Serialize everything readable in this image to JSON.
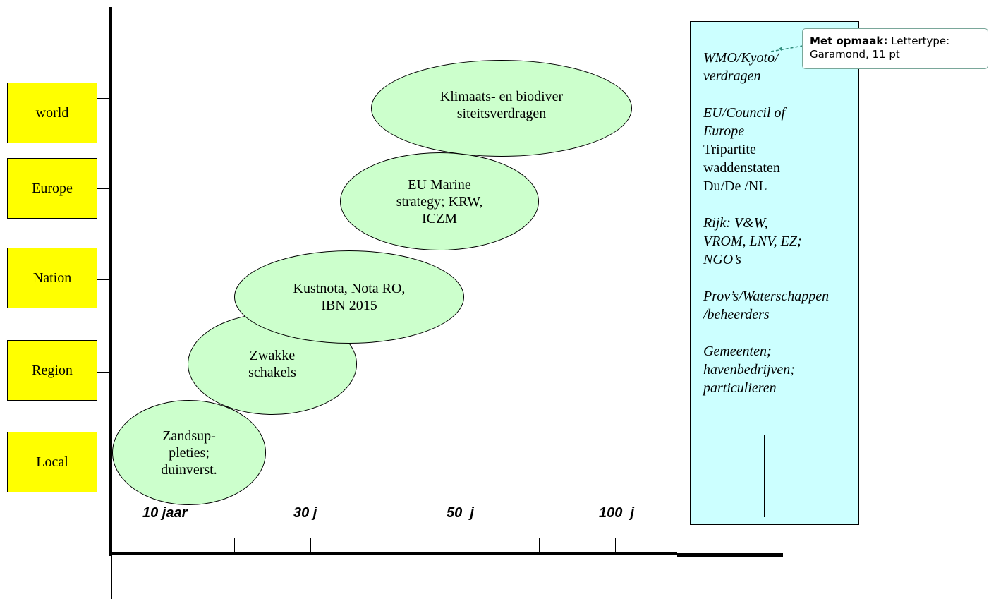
{
  "levels": [
    "world",
    "Europe",
    "Nation",
    "Region",
    "Local"
  ],
  "ellipses": [
    "Klimaats- en  biodiver\nsiteitsverdragen",
    "EU Marine\nstrategy; KRW,\nICZM",
    "Kustnota, Nota RO,\nIBN 2015",
    "Zwakke\nschakels",
    "Zandsup-\npleties;\nduinverst."
  ],
  "x_labels": [
    "10 jaar",
    "30 j",
    "50  j",
    "100  j"
  ],
  "sidebar": {
    "wmo_1": "WMO/Kyoto/",
    "wmo_2": "verdragen",
    "eu_1": "EU/Council of",
    "eu_2": "Europe",
    "tri_1": "Tripartite",
    "tri_2": "waddenstaten",
    "tri_3": "Du/De /NL",
    "rijk_1": "Rijk: V&W,",
    "rijk_2": "VROM, LNV, EZ;",
    "rijk_3": "NGO’s",
    "prov_1": "Prov’s/Waterschappen",
    "prov_2": "/beheerders",
    "gem_1": "Gemeenten;",
    "gem_2": "havenbedrijven;",
    "gem_3": "particulieren"
  },
  "comment": {
    "label": "Met opmaak:",
    "text_1": "Lettertype:",
    "text_2": "Garamond, 11 pt",
    "border_color": "#7aa79a"
  },
  "colors": {
    "level_fill": "#ffff00",
    "ellipse_fill": "#ccffcc",
    "sidebox_fill": "#ccffff"
  }
}
